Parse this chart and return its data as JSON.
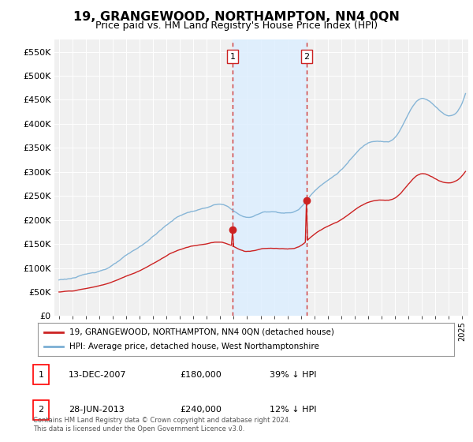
{
  "title": "19, GRANGEWOOD, NORTHAMPTON, NN4 0QN",
  "subtitle": "Price paid vs. HM Land Registry's House Price Index (HPI)",
  "title_fontsize": 11.5,
  "subtitle_fontsize": 9,
  "ylabel_ticks": [
    "£0",
    "£50K",
    "£100K",
    "£150K",
    "£200K",
    "£250K",
    "£300K",
    "£350K",
    "£400K",
    "£450K",
    "£500K",
    "£550K"
  ],
  "ytick_vals": [
    0,
    50000,
    100000,
    150000,
    200000,
    250000,
    300000,
    350000,
    400000,
    450000,
    500000,
    550000
  ],
  "ylim": [
    0,
    575000
  ],
  "background_color": "#ffffff",
  "plot_bg_color": "#f0f0f0",
  "grid_color": "#ffffff",
  "hpi_color": "#7bafd4",
  "price_color": "#cc2222",
  "sale1_date_idx": 156,
  "sale1_price": 180000,
  "sale2_date_idx": 222,
  "sale2_price": 240000,
  "shade_color": "#ddeeff",
  "legend_entry1": "19, GRANGEWOOD, NORTHAMPTON, NN4 0QN (detached house)",
  "legend_entry2": "HPI: Average price, detached house, West Northamptonshire",
  "table_rows": [
    {
      "num": "1",
      "date": "13-DEC-2007",
      "price": "£180,000",
      "change": "39% ↓ HPI"
    },
    {
      "num": "2",
      "date": "28-JUN-2013",
      "price": "£240,000",
      "change": "12% ↓ HPI"
    }
  ],
  "footnote": "Contains HM Land Registry data © Crown copyright and database right 2024.\nThis data is licensed under the Open Government Licence v3.0."
}
